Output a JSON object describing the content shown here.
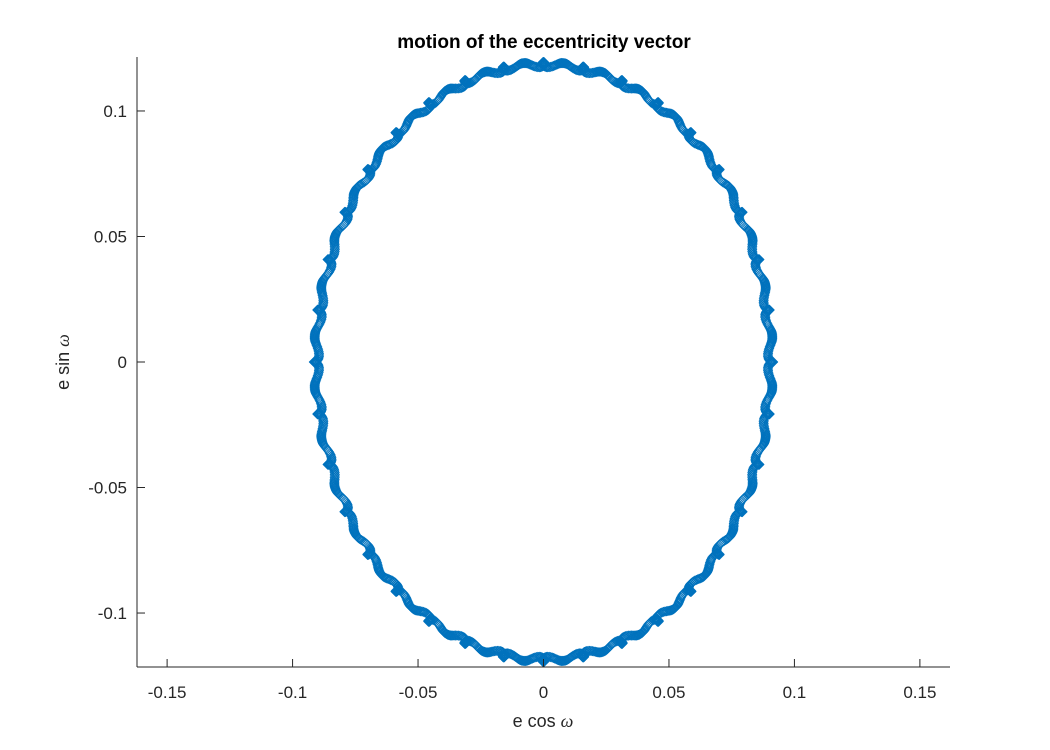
{
  "chart_data": {
    "type": "scatter",
    "title": "motion of the eccentricity vector",
    "xlabel": "e cos",
    "ylabel": "e sin",
    "axis_symbol": "ω",
    "xlim": [
      -0.162,
      0.162
    ],
    "ylim": [
      -0.1215,
      0.1215
    ],
    "xticks": [
      -0.15,
      -0.1,
      -0.05,
      0,
      0.05,
      0.1,
      0.15
    ],
    "xtick_labels": [
      "-0.15",
      "-0.1",
      "-0.05",
      "0",
      "0.05",
      "0.1",
      "0.15"
    ],
    "yticks": [
      -0.1,
      -0.05,
      0,
      0.05,
      0.1
    ],
    "ytick_labels": [
      "-0.1",
      "-0.05",
      "0",
      "0.05",
      "0.1"
    ],
    "grid": false,
    "box": "left-bottom",
    "marker": "diamond",
    "series": [
      {
        "color": "#0072BD",
        "path": {
          "model": "ellipse with epicyclic loops",
          "center": [
            0.0,
            0.0
          ],
          "semi_axis_x": 0.0915,
          "semi_axis_y": 0.1195,
          "loop_count": 36,
          "loop_radius": 0.011,
          "point_count": 1800
        }
      }
    ]
  }
}
